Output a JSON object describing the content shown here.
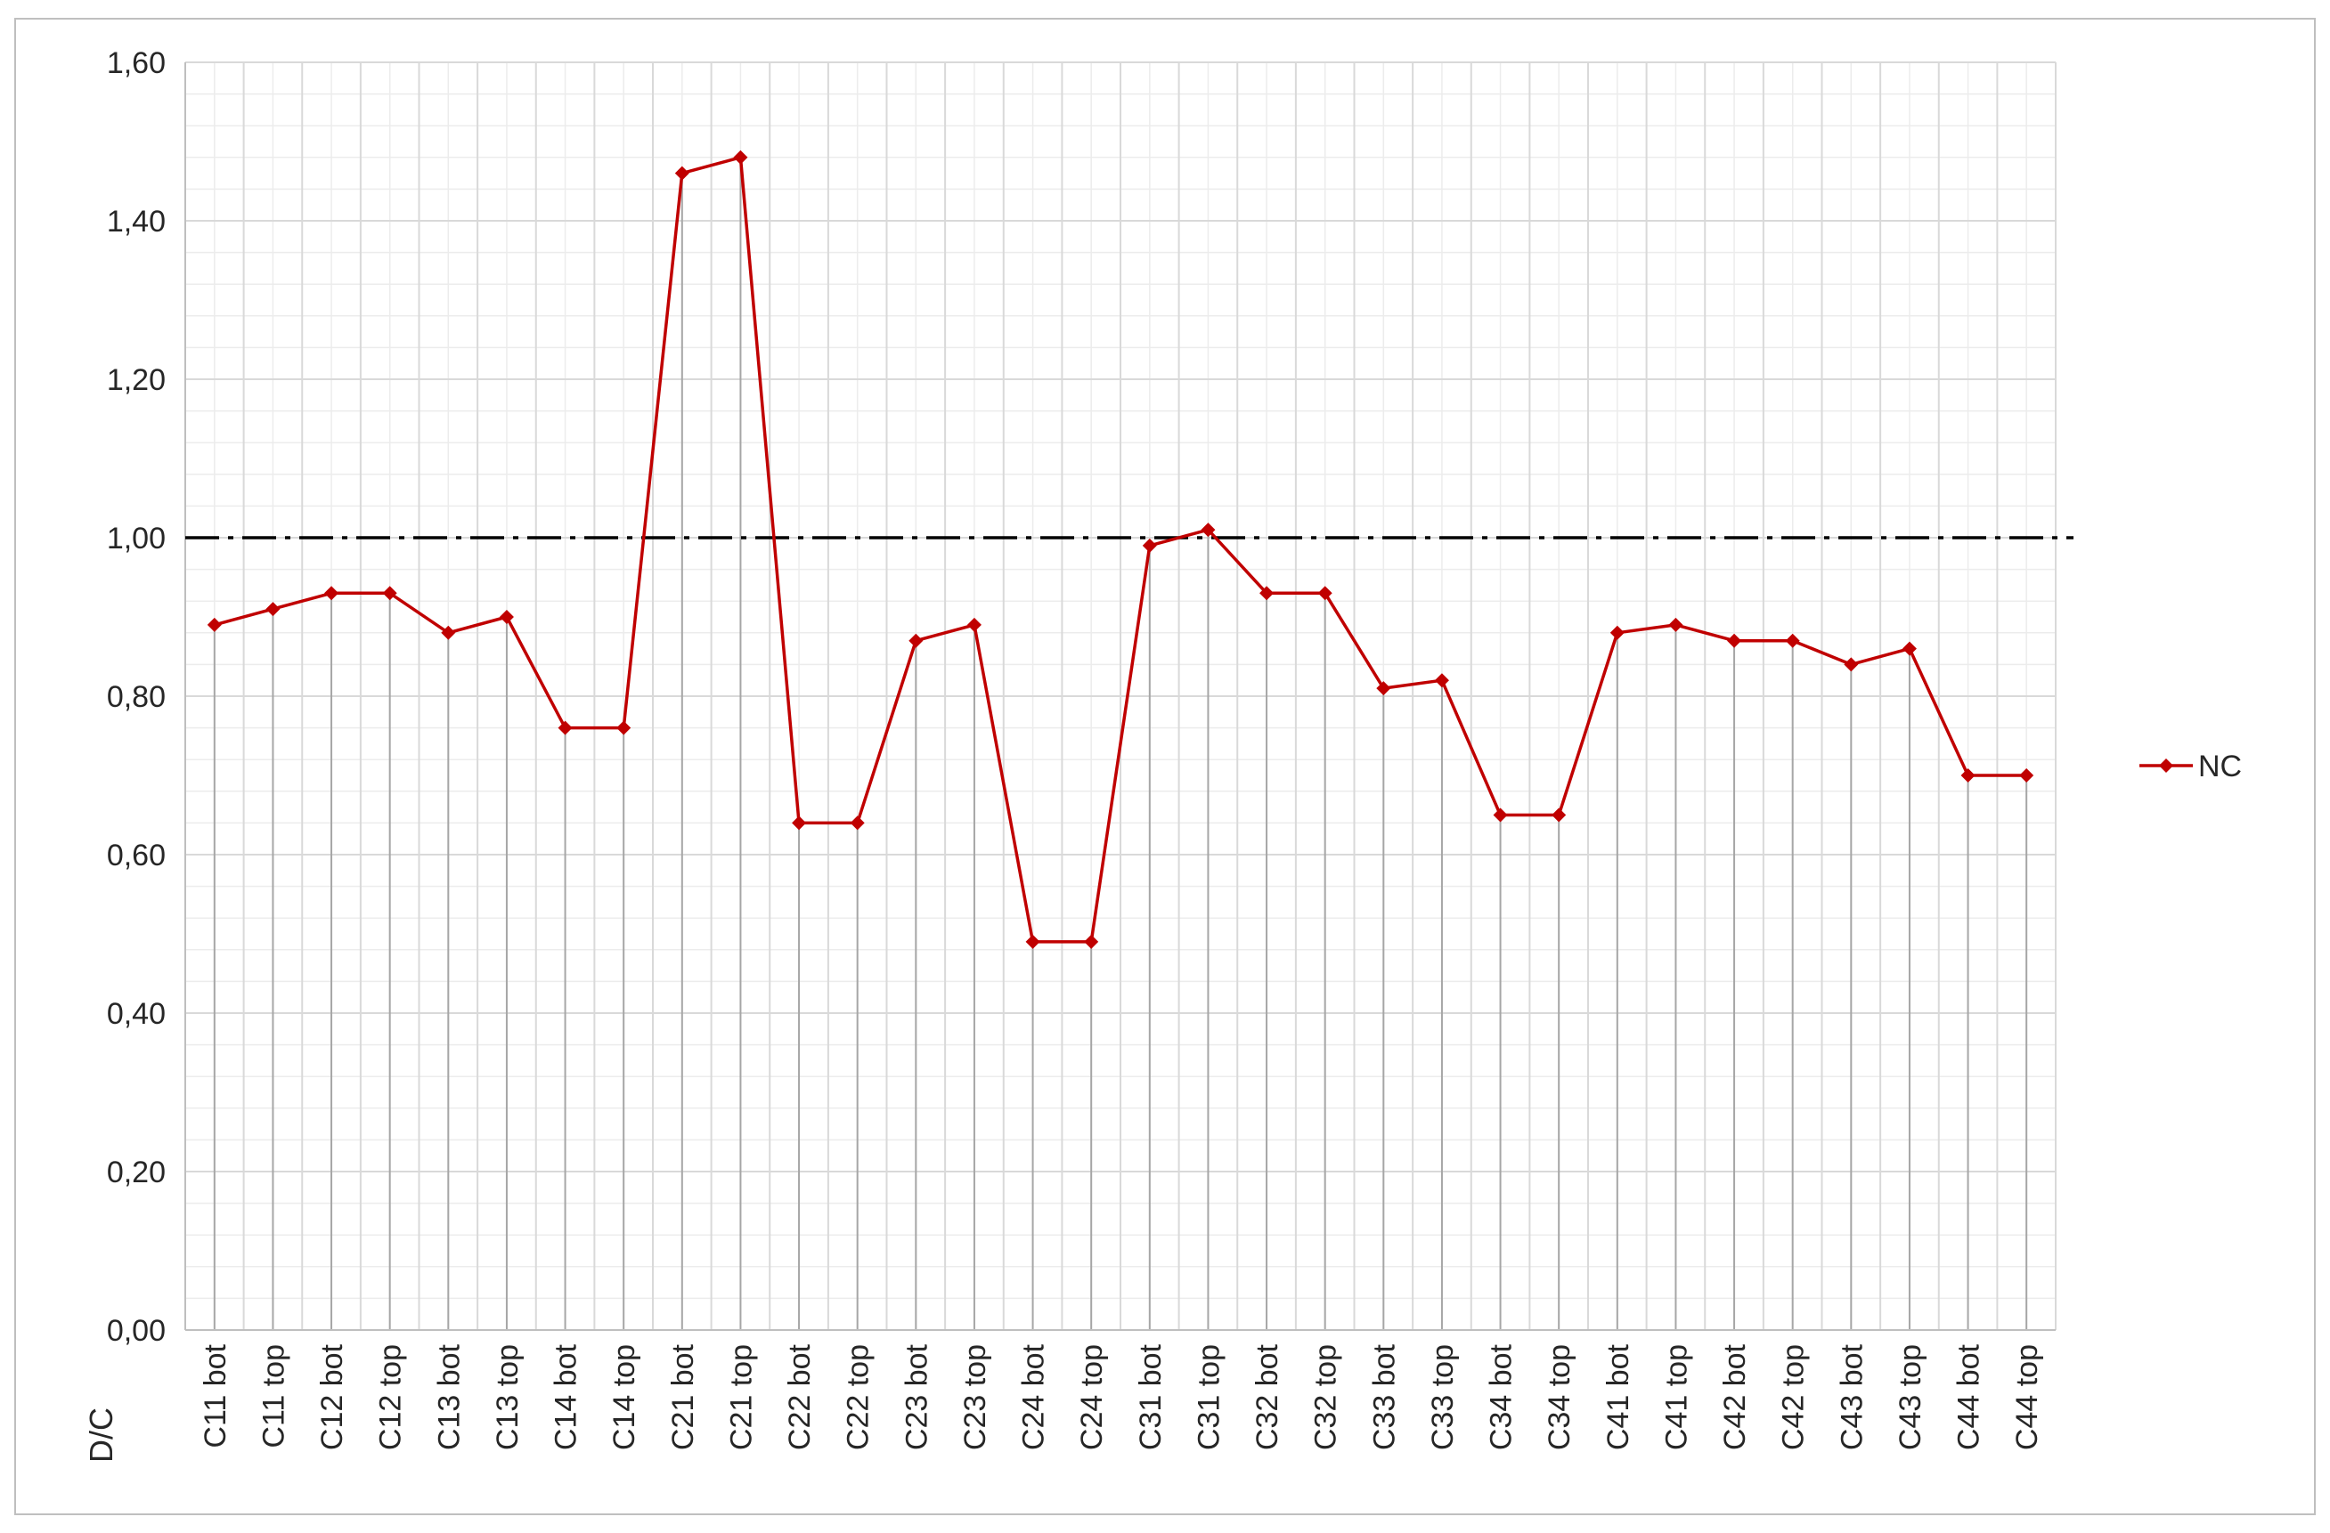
{
  "chart_data": {
    "type": "line",
    "title": "",
    "xlabel": "",
    "ylabel": "D/C",
    "ylim": [
      0,
      1.6
    ],
    "ytick_step": 0.2,
    "yticks": [
      "0,00",
      "0,20",
      "0,40",
      "0,60",
      "0,80",
      "1,00",
      "1,20",
      "1,40",
      "1,60"
    ],
    "grid": true,
    "legend_position": "right",
    "reference_line": {
      "value": 1.0,
      "style": "dash-dot",
      "color": "#000000"
    },
    "categories": [
      "C11 bot",
      "C11 top",
      "C12 bot",
      "C12 top",
      "C13 bot",
      "C13 top",
      "C14 bot",
      "C14 top",
      "C21 bot",
      "C21 top",
      "C22 bot",
      "C22 top",
      "C23 bot",
      "C23 top",
      "C24 bot",
      "C24 top",
      "C31 bot",
      "C31 top",
      "C32 bot",
      "C32 top",
      "C33 bot",
      "C33 top",
      "C34 bot",
      "C34 top",
      "C41 bot",
      "C41 top",
      "C42 bot",
      "C42 top",
      "C43 bot",
      "C43 top",
      "C44 bot",
      "C44 top"
    ],
    "series": [
      {
        "name": "NC",
        "color": "#c00000",
        "marker": "diamond",
        "drop_lines": true,
        "values": [
          0.89,
          0.91,
          0.93,
          0.93,
          0.88,
          0.9,
          0.76,
          0.76,
          1.46,
          1.48,
          0.64,
          0.64,
          0.87,
          0.89,
          0.49,
          0.49,
          0.99,
          1.01,
          0.93,
          0.93,
          0.81,
          0.82,
          0.65,
          0.65,
          0.88,
          0.89,
          0.87,
          0.87,
          0.84,
          0.86,
          0.7,
          0.7
        ]
      }
    ]
  }
}
